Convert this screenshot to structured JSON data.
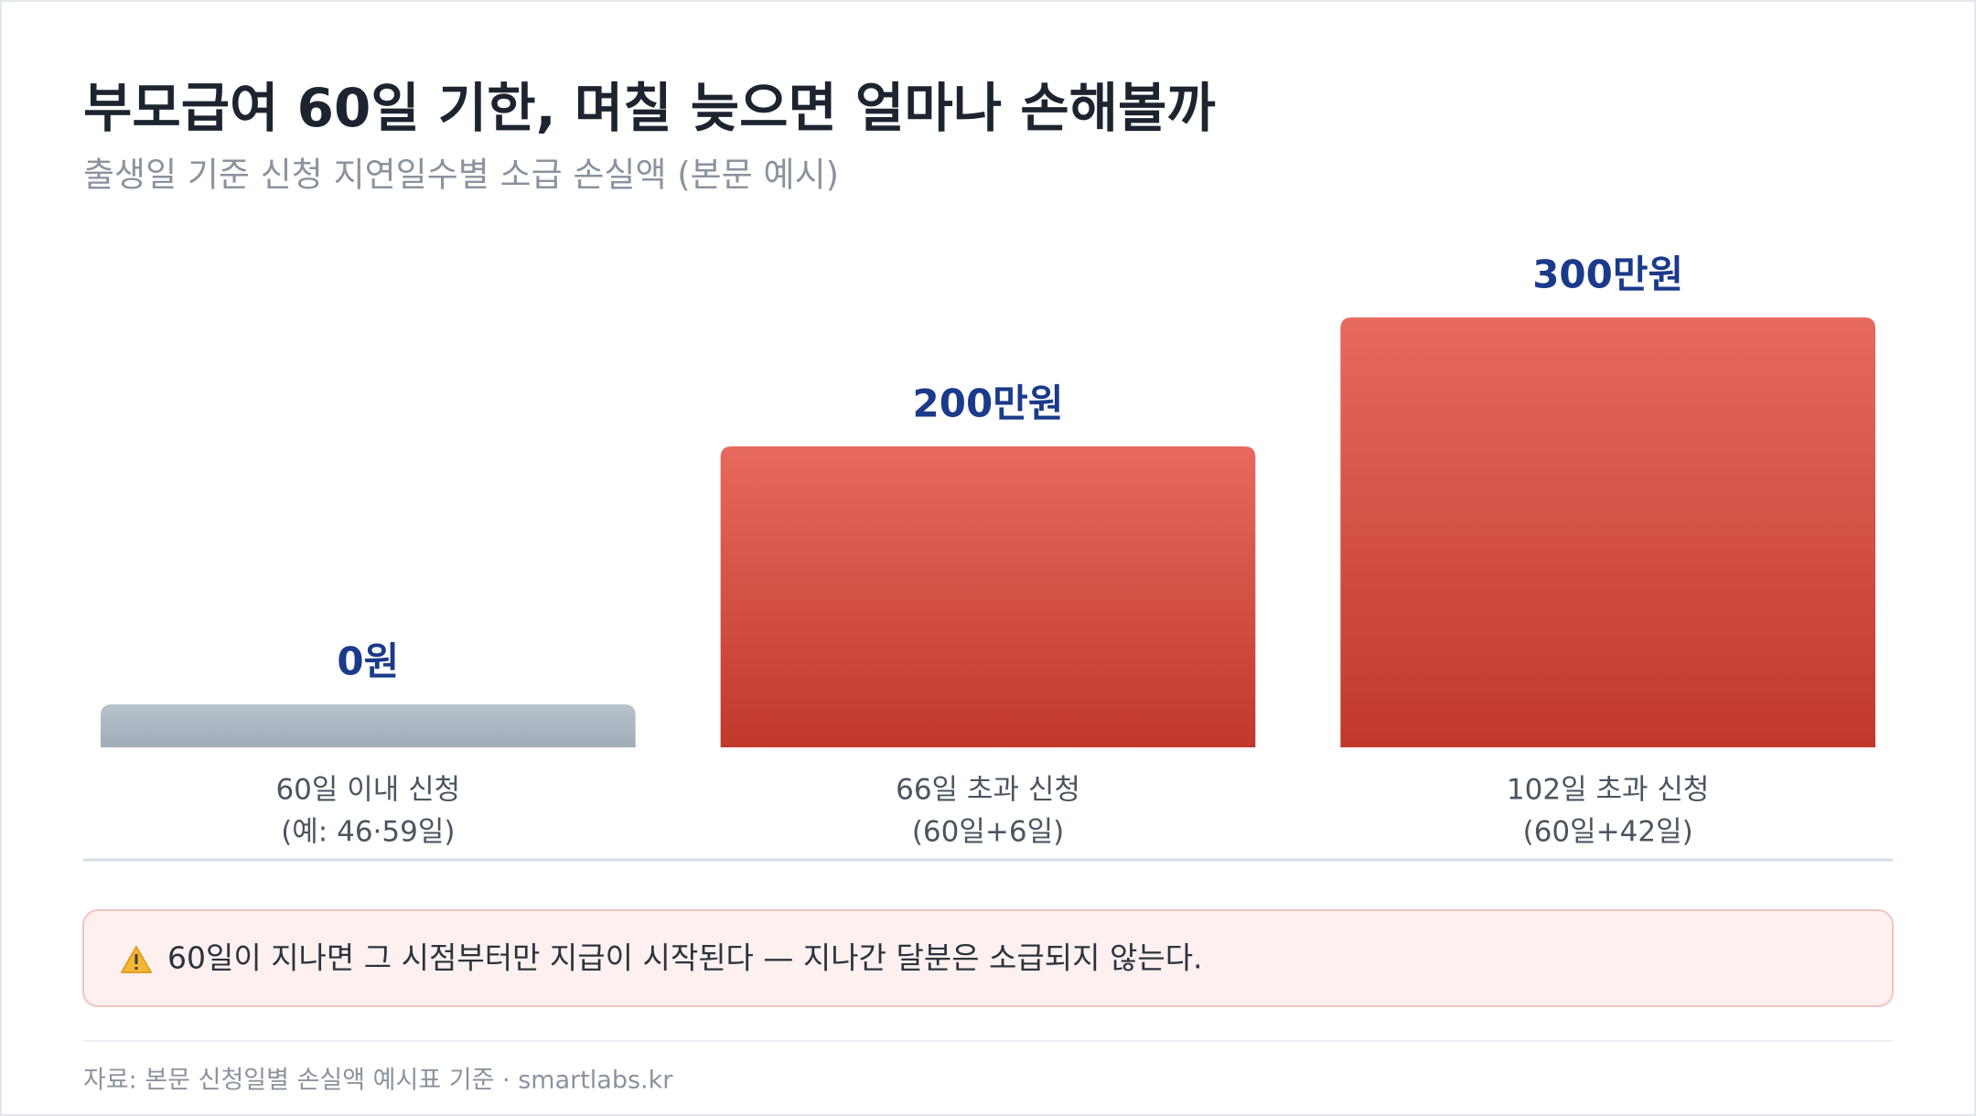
{
  "chart_data": {
    "type": "bar",
    "title": "부모급여 60일 기한, 며칠 늦으면 얼마나 손해볼까",
    "subtitle": "출생일 기준 신청 지연일수별 소급 손실액 (본문 예시)",
    "categories": [
      "60일 이내 신청",
      "66일 초과 신청",
      "102일 초과 신청"
    ],
    "category_notes": [
      "(예: 46·59일)",
      "(60일+6일)",
      "(60일+42일)"
    ],
    "values": [
      0,
      200,
      300
    ],
    "value_labels": [
      "0원",
      "200만원",
      "300만원"
    ],
    "colors": [
      "#aab5c1",
      "#d9493c",
      "#d9493c"
    ],
    "note": "60일이 지나면 그 시점부터만 지급이 시작된다 — 지나간 달분은 소급되지 않는다.",
    "source": "자료: 본문 신청일별 손실액 예시표 기준 · smartlabs.kr"
  }
}
